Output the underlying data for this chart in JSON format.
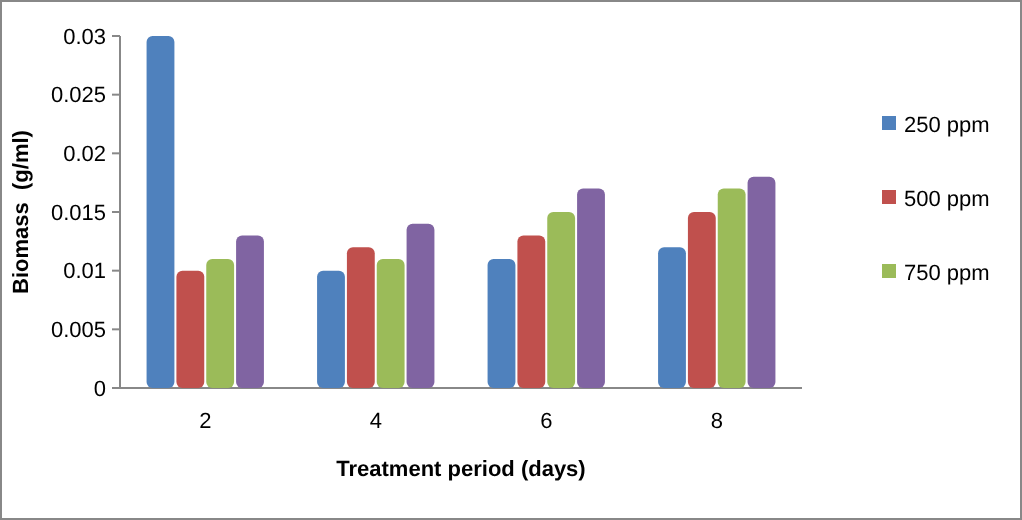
{
  "chart_data": {
    "type": "bar",
    "xlabel": "Treatment period (days)",
    "ylabel": "Biomass  (g/ml)",
    "categories": [
      "2",
      "4",
      "6",
      "8"
    ],
    "series": [
      {
        "name": "250 ppm",
        "color": "#4f81bd",
        "values": [
          0.03,
          0.01,
          0.011,
          0.012
        ]
      },
      {
        "name": "500 ppm",
        "color": "#c0504d",
        "values": [
          0.01,
          0.012,
          0.013,
          0.015
        ]
      },
      {
        "name": "750 ppm",
        "color": "#9bbb59",
        "values": [
          0.011,
          0.011,
          0.015,
          0.017
        ]
      },
      {
        "color": "#8064a2",
        "values": [
          0.013,
          0.014,
          0.017,
          0.018
        ]
      }
    ],
    "ylim": [
      0,
      0.03
    ],
    "yticks": [
      0,
      0.005,
      0.01,
      0.015,
      0.02,
      0.025,
      0.03
    ],
    "grid": false,
    "legend": "right"
  }
}
